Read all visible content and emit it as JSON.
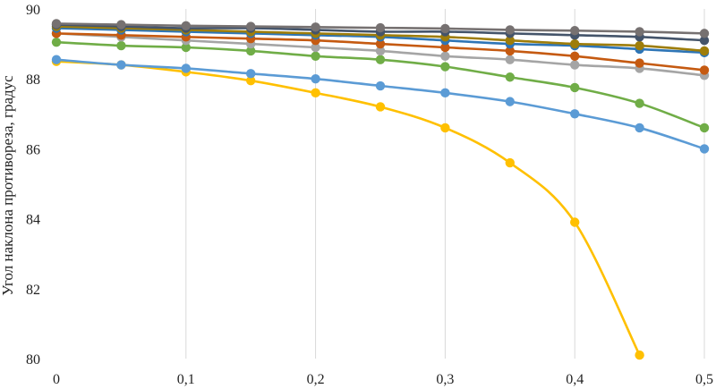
{
  "chart_data": {
    "type": "line",
    "title": "",
    "xlabel": "",
    "ylabel": "Угол наклона противореза, градус",
    "xlim": [
      0,
      0.5
    ],
    "ylim": [
      80,
      90
    ],
    "x_ticks": [
      {
        "value": 0,
        "label": "0"
      },
      {
        "value": 0.1,
        "label": "0,1"
      },
      {
        "value": 0.2,
        "label": "0,2"
      },
      {
        "value": 0.3,
        "label": "0,3"
      },
      {
        "value": 0.4,
        "label": "0,4"
      },
      {
        "value": 0.5,
        "label": "0,5"
      }
    ],
    "y_ticks": [
      {
        "value": 80,
        "label": "80"
      },
      {
        "value": 82,
        "label": "82"
      },
      {
        "value": 84,
        "label": "84"
      },
      {
        "value": 86,
        "label": "86"
      },
      {
        "value": 88,
        "label": "88"
      },
      {
        "value": 90,
        "label": "90"
      }
    ],
    "grid": "vertical",
    "legend": "none",
    "x": [
      0,
      0.05,
      0.1,
      0.15,
      0.2,
      0.25,
      0.3,
      0.35,
      0.4,
      0.45,
      0.5
    ],
    "series": [
      {
        "color": "#FFC000",
        "x": [
          0,
          0.05,
          0.1,
          0.15,
          0.2,
          0.25,
          0.3,
          0.35,
          0.4,
          0.45
        ],
        "values": [
          88.5,
          88.4,
          88.2,
          87.95,
          87.6,
          87.2,
          86.6,
          85.6,
          83.9,
          80.1
        ]
      },
      {
        "color": "#5B9BD5",
        "values": [
          88.55,
          88.4,
          88.3,
          88.15,
          88.0,
          87.8,
          87.6,
          87.35,
          87.0,
          86.6,
          86.0
        ]
      },
      {
        "color": "#70AD47",
        "values": [
          89.05,
          88.95,
          88.9,
          88.8,
          88.65,
          88.55,
          88.35,
          88.05,
          87.75,
          87.3,
          86.6
        ]
      },
      {
        "color": "#A5A5A5",
        "values": [
          89.3,
          89.2,
          89.1,
          89.0,
          88.9,
          88.8,
          88.65,
          88.55,
          88.4,
          88.3,
          88.1
        ]
      },
      {
        "color": "#C55A11",
        "values": [
          89.3,
          89.25,
          89.2,
          89.15,
          89.1,
          89.0,
          88.9,
          88.8,
          88.65,
          88.45,
          88.25
        ]
      },
      {
        "color": "#2E75B6",
        "values": [
          89.45,
          89.4,
          89.35,
          89.3,
          89.25,
          89.2,
          89.1,
          89.0,
          88.95,
          88.85,
          88.75
        ]
      },
      {
        "color": "#9E7D0A",
        "values": [
          89.5,
          89.45,
          89.4,
          89.35,
          89.3,
          89.25,
          89.2,
          89.1,
          89.0,
          88.95,
          88.8
        ]
      },
      {
        "color": "#44546A",
        "values": [
          89.55,
          89.5,
          89.45,
          89.45,
          89.4,
          89.35,
          89.35,
          89.3,
          89.25,
          89.2,
          89.1
        ]
      },
      {
        "color": "#767171",
        "values": [
          89.58,
          89.55,
          89.52,
          89.5,
          89.48,
          89.46,
          89.44,
          89.4,
          89.38,
          89.35,
          89.3
        ]
      }
    ]
  }
}
